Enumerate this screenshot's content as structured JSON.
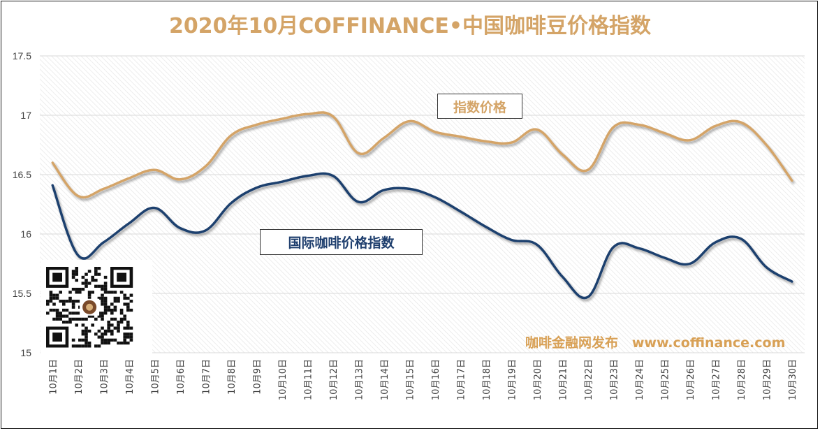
{
  "chart_data": {
    "type": "line",
    "title": "2020年10月COFFINANCE•中国咖啡豆价格指数",
    "categories": [
      "10月1日",
      "10月2日",
      "10月3日",
      "10月4日",
      "10月5日",
      "10月6日",
      "10月7日",
      "10月8日",
      "10月9日",
      "10月10日",
      "10月11日",
      "10月12日",
      "10月13日",
      "10月14日",
      "10月15日",
      "10月16日",
      "10月17日",
      "10月18日",
      "10月19日",
      "10月20日",
      "10月21日",
      "10月22日",
      "10月23日",
      "10月24日",
      "10月25日",
      "10月26日",
      "10月27日",
      "10月28日",
      "10月29日",
      "10月30日"
    ],
    "yticks": [
      "15",
      "15.5",
      "16",
      "16.5",
      "17",
      "17.5"
    ],
    "ylim": [
      15,
      17.5
    ],
    "series": [
      {
        "name": "指数价格",
        "color": "#d4a467",
        "values": [
          16.6,
          16.32,
          16.38,
          16.47,
          16.54,
          16.46,
          16.57,
          16.83,
          16.92,
          16.97,
          17.01,
          16.99,
          16.68,
          16.81,
          16.95,
          16.86,
          16.82,
          16.78,
          16.77,
          16.88,
          16.67,
          16.54,
          16.9,
          16.92,
          16.85,
          16.79,
          16.91,
          16.94,
          16.75,
          16.45
        ]
      },
      {
        "name": "国际咖啡价格指数",
        "color": "#1f3f6e",
        "values": [
          16.41,
          15.82,
          15.93,
          16.09,
          16.22,
          16.05,
          16.03,
          16.26,
          16.39,
          16.44,
          16.49,
          16.49,
          16.27,
          16.37,
          16.38,
          16.31,
          16.19,
          16.06,
          15.95,
          15.91,
          15.64,
          15.47,
          15.89,
          15.88,
          15.8,
          15.75,
          15.93,
          15.96,
          15.72,
          15.6
        ]
      }
    ],
    "grid": true,
    "legend": "inline-labels"
  },
  "watermark": {
    "text": "咖啡金融网发布   www.coffinance.com"
  }
}
